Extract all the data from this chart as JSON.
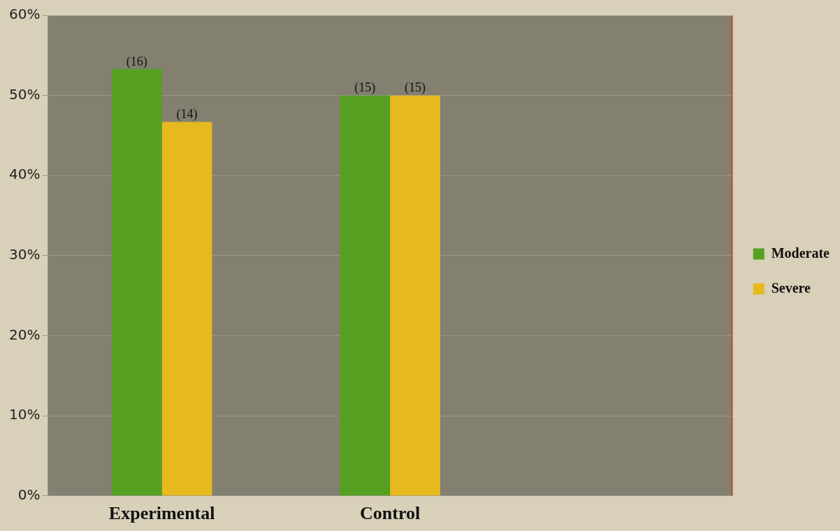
{
  "chart_data": {
    "type": "bar",
    "categories": [
      "Experimental",
      "Control",
      null
    ],
    "series": [
      {
        "name": "Moderate",
        "color": "#56a021",
        "values": [
          53.3,
          50,
          null
        ]
      },
      {
        "name": "Severe",
        "color": "#e6b91e",
        "values": [
          46.7,
          50,
          null
        ]
      }
    ],
    "annotations": [
      {
        "text": "(16)",
        "x": "Experimental",
        "y": 53.3
      },
      {
        "text": "(14)",
        "x": "Experimental",
        "y": 46.7
      },
      {
        "text": "(15)",
        "x": "Control",
        "y": 50
      },
      {
        "text": "(15)",
        "x": "Control",
        "y": 50
      }
    ],
    "ylim": [
      0,
      60
    ],
    "yticks": [
      {
        "value": 0,
        "label": "0%"
      },
      {
        "value": 10,
        "label": "10%"
      },
      {
        "value": 20,
        "label": "20%"
      },
      {
        "value": 30,
        "label": "30%"
      },
      {
        "value": 40,
        "label": "40%"
      },
      {
        "value": 50,
        "label": "50%"
      },
      {
        "value": 60,
        "label": "60%"
      }
    ],
    "grid": "y",
    "legend": "right"
  }
}
